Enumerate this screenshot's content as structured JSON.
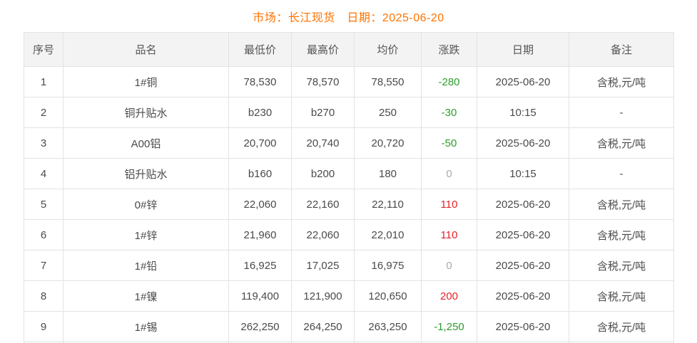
{
  "page": {
    "title": "市场：长江现货　日期：2025-06-20"
  },
  "colors": {
    "title": "#ff7300",
    "up": "#e62129",
    "down": "#2b9e2b",
    "flat": "#aaaaaa",
    "header_bg": "#f3f3f3",
    "border": "#e3e3e3"
  },
  "table": {
    "columns": {
      "no": "序号",
      "name": "品名",
      "low": "最低价",
      "high": "最高价",
      "avg": "均价",
      "change": "涨跌",
      "date": "日期",
      "note": "备注"
    },
    "rows": [
      {
        "no": "1",
        "name": "1#铜",
        "low": "78,530",
        "high": "78,570",
        "avg": "78,550",
        "change": "-280",
        "trend": "down",
        "date": "2025-06-20",
        "note": "含税,元/吨"
      },
      {
        "no": "2",
        "name": "铜升贴水",
        "low": "b230",
        "high": "b270",
        "avg": "250",
        "change": "-30",
        "trend": "down",
        "date": "10:15",
        "note": "-"
      },
      {
        "no": "3",
        "name": "A00铝",
        "low": "20,700",
        "high": "20,740",
        "avg": "20,720",
        "change": "-50",
        "trend": "down",
        "date": "2025-06-20",
        "note": "含税,元/吨"
      },
      {
        "no": "4",
        "name": "铝升贴水",
        "low": "b160",
        "high": "b200",
        "avg": "180",
        "change": "0",
        "trend": "flat",
        "date": "10:15",
        "note": "-"
      },
      {
        "no": "5",
        "name": "0#锌",
        "low": "22,060",
        "high": "22,160",
        "avg": "22,110",
        "change": "110",
        "trend": "up",
        "date": "2025-06-20",
        "note": "含税,元/吨"
      },
      {
        "no": "6",
        "name": "1#锌",
        "low": "21,960",
        "high": "22,060",
        "avg": "22,010",
        "change": "110",
        "trend": "up",
        "date": "2025-06-20",
        "note": "含税,元/吨"
      },
      {
        "no": "7",
        "name": "1#铅",
        "low": "16,925",
        "high": "17,025",
        "avg": "16,975",
        "change": "0",
        "trend": "flat",
        "date": "2025-06-20",
        "note": "含税,元/吨"
      },
      {
        "no": "8",
        "name": "1#镍",
        "low": "119,400",
        "high": "121,900",
        "avg": "120,650",
        "change": "200",
        "trend": "up",
        "date": "2025-06-20",
        "note": "含税,元/吨"
      },
      {
        "no": "9",
        "name": "1#锡",
        "low": "262,250",
        "high": "264,250",
        "avg": "263,250",
        "change": "-1,250",
        "trend": "down",
        "date": "2025-06-20",
        "note": "含税,元/吨"
      }
    ]
  }
}
